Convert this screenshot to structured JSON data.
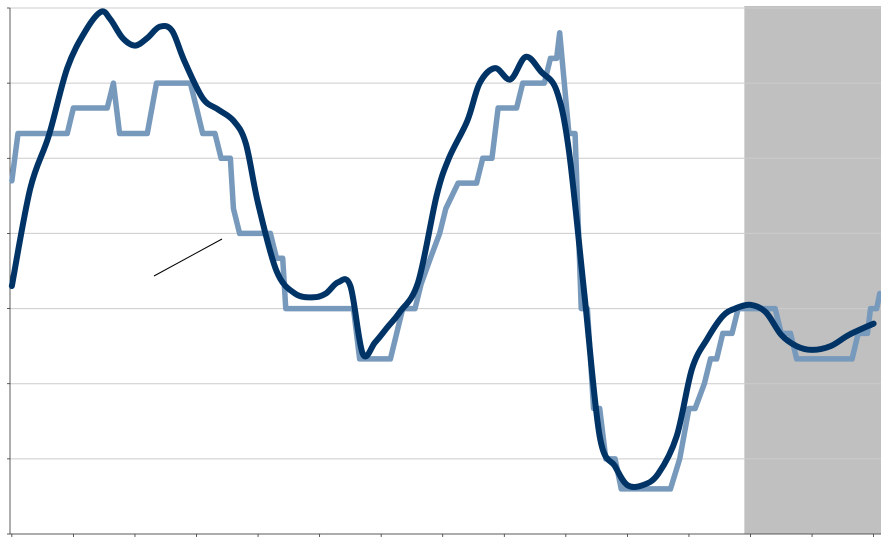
{
  "chart_data": {
    "type": "line",
    "title": "",
    "xlabel": "",
    "ylabel": "",
    "grid": true,
    "legend": "none",
    "xlim": [
      0,
      14
    ],
    "ylim": [
      -3.0,
      4.0
    ],
    "x_ticks": [
      0,
      1,
      2,
      3,
      4,
      5,
      6,
      7,
      8,
      9,
      10,
      11,
      12,
      13,
      14
    ],
    "y_ticks": [
      -3,
      -2,
      -1,
      0,
      1,
      2,
      3,
      4
    ],
    "shaded_region": {
      "x_start": 11.9,
      "x_end": 14.2,
      "color": "#c0c0c0"
    },
    "series": [
      {
        "color": "#003366",
        "style": "smooth",
        "points": [
          [
            0.0,
            0.3
          ],
          [
            0.3,
            1.6
          ],
          [
            0.6,
            2.3
          ],
          [
            0.9,
            3.2
          ],
          [
            1.2,
            3.7
          ],
          [
            1.45,
            3.95
          ],
          [
            1.6,
            3.85
          ],
          [
            1.8,
            3.6
          ],
          [
            2.0,
            3.5
          ],
          [
            2.2,
            3.6
          ],
          [
            2.4,
            3.75
          ],
          [
            2.6,
            3.7
          ],
          [
            2.8,
            3.3
          ],
          [
            3.1,
            2.8
          ],
          [
            3.35,
            2.65
          ],
          [
            3.6,
            2.5
          ],
          [
            3.8,
            2.2
          ],
          [
            4.0,
            1.4
          ],
          [
            4.3,
            0.5
          ],
          [
            4.6,
            0.2
          ],
          [
            4.9,
            0.15
          ],
          [
            5.1,
            0.2
          ],
          [
            5.3,
            0.35
          ],
          [
            5.5,
            0.3
          ],
          [
            5.7,
            -0.6
          ],
          [
            5.9,
            -0.45
          ],
          [
            6.1,
            -0.25
          ],
          [
            6.3,
            -0.05
          ],
          [
            6.6,
            0.35
          ],
          [
            6.9,
            1.5
          ],
          [
            7.1,
            2.0
          ],
          [
            7.4,
            2.5
          ],
          [
            7.6,
            3.0
          ],
          [
            7.85,
            3.2
          ],
          [
            8.1,
            3.05
          ],
          [
            8.35,
            3.35
          ],
          [
            8.6,
            3.15
          ],
          [
            8.85,
            2.9
          ],
          [
            9.05,
            2.1
          ],
          [
            9.3,
            0.2
          ],
          [
            9.55,
            -1.7
          ],
          [
            9.8,
            -2.1
          ],
          [
            10.0,
            -2.35
          ],
          [
            10.25,
            -2.35
          ],
          [
            10.5,
            -2.2
          ],
          [
            10.8,
            -1.7
          ],
          [
            11.05,
            -0.8
          ],
          [
            11.3,
            -0.4
          ],
          [
            11.55,
            -0.1
          ],
          [
            11.75,
            0.0
          ],
          [
            12.0,
            0.05
          ],
          [
            12.25,
            -0.05
          ],
          [
            12.5,
            -0.35
          ],
          [
            12.75,
            -0.5
          ],
          [
            13.0,
            -0.55
          ],
          [
            13.3,
            -0.5
          ],
          [
            13.6,
            -0.35
          ],
          [
            14.0,
            -0.2
          ]
        ]
      },
      {
        "color": "#7799bb",
        "style": "step",
        "points": [
          [
            0.0,
            1.7
          ],
          [
            0.1,
            2.33
          ],
          [
            0.9,
            2.33
          ],
          [
            1.0,
            2.67
          ],
          [
            1.55,
            2.67
          ],
          [
            1.65,
            3.0
          ],
          [
            1.75,
            2.33
          ],
          [
            2.2,
            2.33
          ],
          [
            2.35,
            3.0
          ],
          [
            2.9,
            3.0
          ],
          [
            3.0,
            2.67
          ],
          [
            3.1,
            2.33
          ],
          [
            3.3,
            2.33
          ],
          [
            3.4,
            2.0
          ],
          [
            3.55,
            2.0
          ],
          [
            3.6,
            1.33
          ],
          [
            3.7,
            1.0
          ],
          [
            4.2,
            1.0
          ],
          [
            4.3,
            0.67
          ],
          [
            4.4,
            0.67
          ],
          [
            4.45,
            0.0
          ],
          [
            5.55,
            0.0
          ],
          [
            5.65,
            -0.67
          ],
          [
            6.15,
            -0.67
          ],
          [
            6.35,
            0.0
          ],
          [
            6.55,
            0.0
          ],
          [
            6.65,
            0.33
          ],
          [
            6.8,
            0.67
          ],
          [
            6.95,
            1.0
          ],
          [
            7.05,
            1.33
          ],
          [
            7.25,
            1.67
          ],
          [
            7.55,
            1.67
          ],
          [
            7.65,
            2.0
          ],
          [
            7.8,
            2.0
          ],
          [
            7.9,
            2.67
          ],
          [
            8.2,
            2.67
          ],
          [
            8.3,
            3.0
          ],
          [
            8.65,
            3.0
          ],
          [
            8.75,
            3.33
          ],
          [
            8.85,
            3.33
          ],
          [
            8.9,
            3.67
          ],
          [
            9.05,
            2.33
          ],
          [
            9.15,
            2.33
          ],
          [
            9.25,
            0.0
          ],
          [
            9.35,
            0.0
          ],
          [
            9.45,
            -1.33
          ],
          [
            9.55,
            -1.33
          ],
          [
            9.65,
            -2.0
          ],
          [
            9.8,
            -2.0
          ],
          [
            9.9,
            -2.4
          ],
          [
            10.7,
            -2.4
          ],
          [
            10.85,
            -2.0
          ],
          [
            11.0,
            -1.33
          ],
          [
            11.1,
            -1.33
          ],
          [
            11.25,
            -1.0
          ],
          [
            11.35,
            -0.67
          ],
          [
            11.45,
            -0.67
          ],
          [
            11.55,
            -0.33
          ],
          [
            11.7,
            -0.33
          ],
          [
            11.8,
            0.0
          ],
          [
            12.4,
            0.0
          ],
          [
            12.5,
            -0.33
          ],
          [
            12.65,
            -0.33
          ],
          [
            12.75,
            -0.67
          ],
          [
            13.65,
            -0.67
          ],
          [
            13.75,
            -0.33
          ],
          [
            13.9,
            -0.33
          ],
          [
            13.95,
            0.0
          ],
          [
            14.05,
            0.0
          ],
          [
            14.1,
            0.2
          ]
        ]
      }
    ]
  }
}
